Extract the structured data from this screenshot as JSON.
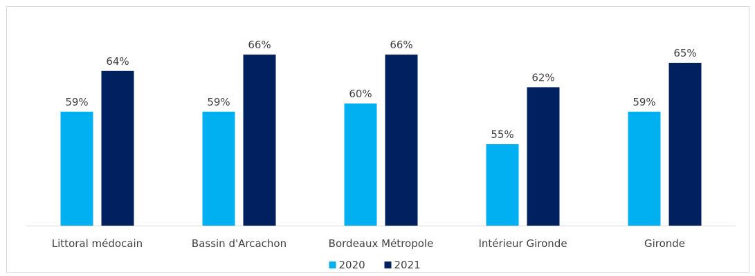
{
  "chart_data": {
    "type": "bar",
    "categories": [
      "Littoral médocain",
      "Bassin d'Arcachon",
      "Bordeaux Métropole",
      "Intérieur Gironde",
      "Gironde"
    ],
    "series": [
      {
        "name": "2020",
        "color": "#00b0f0",
        "values": [
          59,
          59,
          60,
          55,
          59
        ],
        "labels": [
          "59%",
          "59%",
          "60%",
          "55%",
          "59%"
        ]
      },
      {
        "name": "2021",
        "color": "#002060",
        "values": [
          64,
          66,
          66,
          62,
          65
        ],
        "labels": [
          "64%",
          "66%",
          "66%",
          "62%",
          "65%"
        ]
      }
    ],
    "value_format": "percent",
    "ylim": [
      45,
      68
    ],
    "title": "",
    "xlabel": "",
    "ylabel": "",
    "grid": false,
    "legend_position": "bottom",
    "axis_color": "#d9d9d9"
  }
}
